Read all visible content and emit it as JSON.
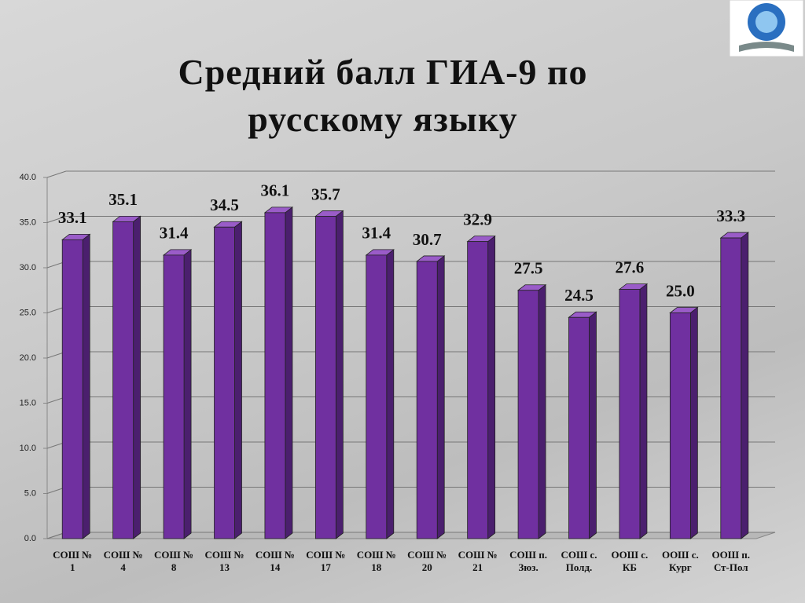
{
  "chart_data": {
    "type": "bar",
    "title": "Средний балл ГИА-9 по русскому языку",
    "categories": [
      "СОШ № 1",
      "СОШ № 4",
      "СОШ № 8",
      "СОШ № 13",
      "СОШ № 14",
      "СОШ № 17",
      "СОШ № 18",
      "СОШ № 20",
      "СОШ № 21",
      "СОШ п. Зюз.",
      "СОШ с. Полд.",
      "ООШ с. КБ",
      "ООШ с. Кург",
      "ООШ п. Ст-Пол"
    ],
    "values": [
      33.1,
      35.1,
      31.4,
      34.5,
      36.1,
      35.7,
      31.4,
      30.7,
      32.9,
      27.5,
      24.5,
      27.6,
      25.0,
      33.3
    ],
    "value_labels": [
      "33.1",
      "35.1",
      "31.4",
      "34.5",
      "36.1",
      "35.7",
      "31.4",
      "30.7",
      "32.9",
      "27.5",
      "24.5",
      "27.6",
      "25.0",
      "33.3"
    ],
    "color": "#7030a0",
    "ylim": [
      0,
      40
    ],
    "yticks": [
      {
        "value": 0,
        "label": "0.0"
      },
      {
        "value": 5,
        "label": "5.0"
      },
      {
        "value": 10,
        "label": "10.0"
      },
      {
        "value": 15,
        "label": "15.0"
      },
      {
        "value": 20,
        "label": "20.0"
      },
      {
        "value": 25,
        "label": "25.0"
      },
      {
        "value": 30,
        "label": "30.0"
      },
      {
        "value": 35,
        "label": "35.0"
      },
      {
        "value": 40,
        "label": "40.0"
      }
    ],
    "grid": true
  }
}
